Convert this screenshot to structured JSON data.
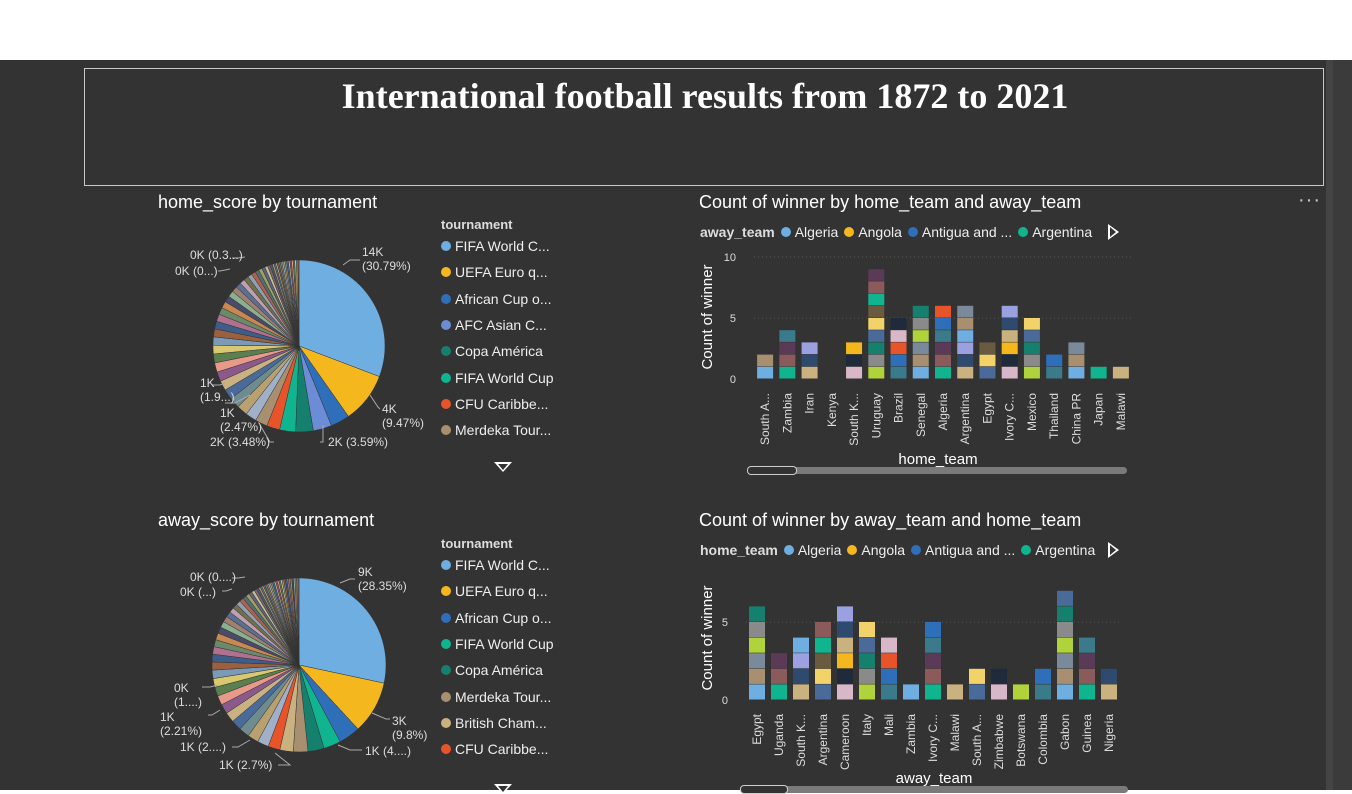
{
  "report": {
    "title": "International football results from 1872 to 2021"
  },
  "pie_home": {
    "title": "home_score by tournament",
    "legend_title": "tournament",
    "legend": [
      {
        "label": "FIFA World C...",
        "color": "#6FAEE0"
      },
      {
        "label": "UEFA Euro q...",
        "color": "#F4B71E"
      },
      {
        "label": "African Cup o...",
        "color": "#2F6FB9"
      },
      {
        "label": "AFC Asian C...",
        "color": "#6C8CD5"
      },
      {
        "label": "Copa América",
        "color": "#16806E"
      },
      {
        "label": "FIFA World Cup",
        "color": "#10B58F"
      },
      {
        "label": "CFU Caribbe...",
        "color": "#E8542A"
      },
      {
        "label": "Merdeka Tour...",
        "color": "#A88F6F"
      }
    ],
    "labels": [
      {
        "text1": "14K",
        "text2": "(30.79%)"
      },
      {
        "text1": "4K",
        "text2": "(9.47%)"
      },
      {
        "text1": "2K (3.59%)",
        "text2": ""
      },
      {
        "text1": "2K (3.48%)",
        "text2": ""
      },
      {
        "text1": "1K",
        "text2": "(2.47%)"
      },
      {
        "text1": "1K",
        "text2": "(1.9...)"
      },
      {
        "text1": "0K (0...)",
        "text2": ""
      },
      {
        "text1": "0K (0.3...)",
        "text2": ""
      }
    ]
  },
  "pie_away": {
    "title": "away_score by tournament",
    "legend_title": "tournament",
    "legend": [
      {
        "label": "FIFA World C...",
        "color": "#6FAEE0"
      },
      {
        "label": "UEFA Euro q...",
        "color": "#F4B71E"
      },
      {
        "label": "African Cup o...",
        "color": "#2F6FB9"
      },
      {
        "label": "FIFA World Cup",
        "color": "#10B58F"
      },
      {
        "label": "Copa América",
        "color": "#16806E"
      },
      {
        "label": "Merdeka Tour...",
        "color": "#A88F6F"
      },
      {
        "label": "British Cham...",
        "color": "#C9B27F"
      },
      {
        "label": "CFU Caribbe...",
        "color": "#E8542A"
      }
    ],
    "labels": [
      {
        "text1": "9K",
        "text2": "(28.35%)"
      },
      {
        "text1": "3K",
        "text2": "(9.8%)"
      },
      {
        "text1": "1K (4....)",
        "text2": ""
      },
      {
        "text1": "1K (2.7%)",
        "text2": ""
      },
      {
        "text1": "1K (2....)",
        "text2": ""
      },
      {
        "text1": "1K",
        "text2": "(2.21%)"
      },
      {
        "text1": "0K",
        "text2": "(1....)"
      },
      {
        "text1": "0K (...)",
        "text2": ""
      },
      {
        "text1": "0K (0....)",
        "text2": ""
      }
    ]
  },
  "bar_top": {
    "title": "Count of winner by home_team and away_team",
    "legend_title": "away_team",
    "legend": [
      {
        "label": "Algeria",
        "color": "#6FAEE0"
      },
      {
        "label": "Angola",
        "color": "#F4B71E"
      },
      {
        "label": "Antigua and ...",
        "color": "#2F6FB9"
      },
      {
        "label": "Argentina",
        "color": "#10B58F"
      }
    ],
    "xlabel": "home_team",
    "ylabel": "Count of winner"
  },
  "bar_bottom": {
    "title": "Count of winner by away_team and home_team",
    "legend_title": "home_team",
    "legend": [
      {
        "label": "Algeria",
        "color": "#6FAEE0"
      },
      {
        "label": "Angola",
        "color": "#F4B71E"
      },
      {
        "label": "Antigua and ...",
        "color": "#2F6FB9"
      },
      {
        "label": "Argentina",
        "color": "#10B58F"
      }
    ],
    "xlabel": "away_team",
    "ylabel": "Count of winner"
  },
  "chart_data": [
    {
      "type": "pie",
      "title": "home_score by tournament",
      "legend_title": "tournament",
      "slices": [
        {
          "label": "FIFA World C...",
          "percent": 30.79,
          "value_label": "14K"
        },
        {
          "label": "UEFA Euro q...",
          "percent": 9.47,
          "value_label": "4K"
        },
        {
          "label": "African Cup o...",
          "percent": 3.59,
          "value_label": "2K"
        },
        {
          "label": "AFC Asian C...",
          "percent": 3.48,
          "value_label": "2K"
        },
        {
          "label": "Copa América",
          "percent": 3.3
        },
        {
          "label": "FIFA World Cup",
          "percent": 3.0
        },
        {
          "label": "CFU Caribbe...",
          "percent": 2.47,
          "value_label": "1K"
        },
        {
          "label": "Merdeka Tour...",
          "percent": 2.3
        }
      ],
      "other_small_slices_percent": 41.6
    },
    {
      "type": "pie",
      "title": "away_score by tournament",
      "legend_title": "tournament",
      "slices": [
        {
          "label": "FIFA World C...",
          "percent": 28.35,
          "value_label": "9K"
        },
        {
          "label": "UEFA Euro q...",
          "percent": 9.8,
          "value_label": "3K"
        },
        {
          "label": "African Cup o...",
          "percent": 4.0,
          "value_label": "1K"
        },
        {
          "label": "FIFA World Cup",
          "percent": 3.2
        },
        {
          "label": "Copa América",
          "percent": 3.0
        },
        {
          "label": "Merdeka Tour...",
          "percent": 2.7,
          "value_label": "1K"
        },
        {
          "label": "British Cham...",
          "percent": 2.5
        },
        {
          "label": "CFU Caribbe...",
          "percent": 2.21,
          "value_label": "1K"
        }
      ],
      "other_small_slices_percent": 44.24
    },
    {
      "type": "bar",
      "stacked": true,
      "title": "Count of winner by home_team and away_team",
      "xlabel": "home_team",
      "ylabel": "Count of winner",
      "ylim": [
        0,
        10
      ],
      "yticks": [
        0,
        5,
        10
      ],
      "categories": [
        "South A...",
        "Zambia",
        "Iran",
        "Kenya",
        "South K...",
        "Uruguay",
        "Brazil",
        "Senegal",
        "Algeria",
        "Argentina",
        "Egypt",
        "Ivory C...",
        "Mexico",
        "Thailand",
        "China PR",
        "Japan",
        "Malawi"
      ],
      "totals": [
        2,
        4,
        3,
        0,
        3,
        9,
        5,
        6,
        6,
        6,
        3,
        6,
        5,
        2,
        3,
        1,
        1
      ]
    },
    {
      "type": "bar",
      "stacked": true,
      "title": "Count of winner by away_team and home_team",
      "xlabel": "away_team",
      "ylabel": "Count of winner",
      "yticks": [
        0,
        5
      ],
      "categories": [
        "Egypt",
        "Uganda",
        "South K...",
        "Argentina",
        "Cameroon",
        "Italy",
        "Mali",
        "Zambia",
        "Ivory C...",
        "Malawi",
        "South A...",
        "Zimbabwe",
        "Botswana",
        "Colombia",
        "Gabon",
        "Guinea",
        "Nigeria"
      ],
      "totals": [
        6,
        3,
        4,
        5,
        6,
        5,
        4,
        1,
        5,
        1,
        2,
        2,
        1,
        2,
        7,
        4,
        2
      ]
    }
  ]
}
